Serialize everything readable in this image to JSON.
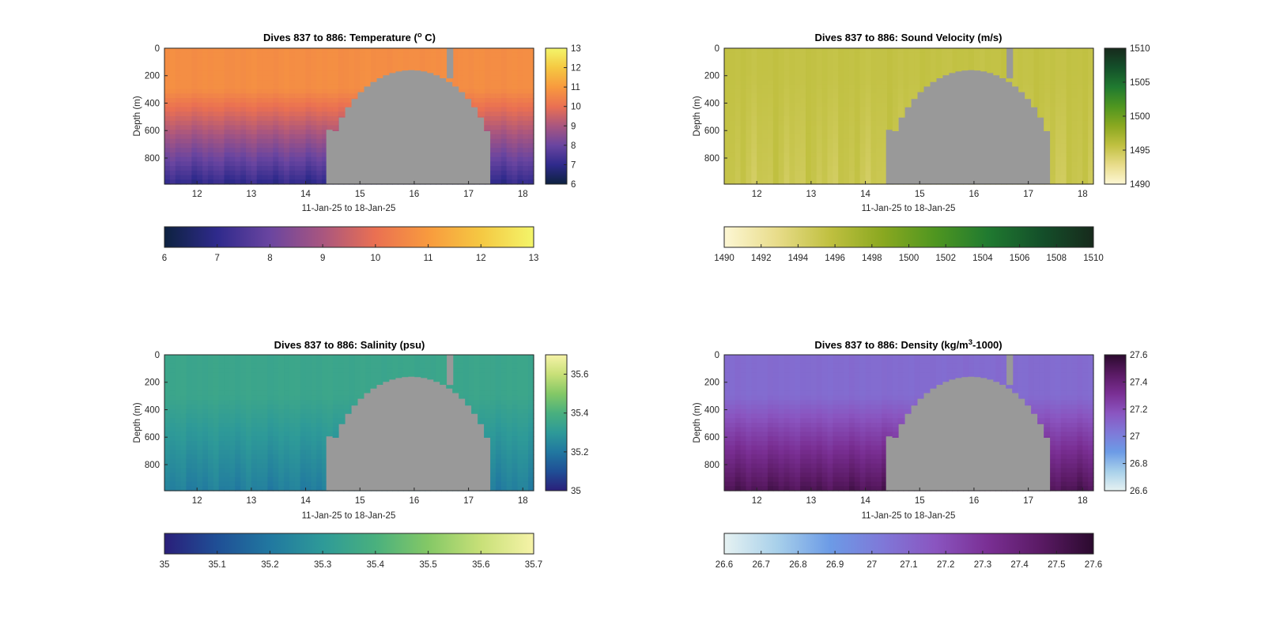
{
  "figure": {
    "background": "#ffffff",
    "fill_color": "#999999"
  },
  "chart_data": [
    {
      "type": "heatmap",
      "title_main": "Dives 837 to 886: Temperature (",
      "title_sup": "o",
      "title_end": " C)",
      "xlabel": "11-Jan-25 to 18-Jan-25",
      "ylabel": "Depth (m)",
      "xlim": [
        11.4,
        18.2
      ],
      "ylim": [
        0,
        990
      ],
      "y_reversed": true,
      "xticks": [
        12,
        13,
        14,
        15,
        16,
        17,
        18
      ],
      "yticks": [
        0,
        200,
        400,
        600,
        800
      ],
      "colormap": [
        "#0d2240",
        "#2f2a8c",
        "#6a45a0",
        "#a9567f",
        "#ea7052",
        "#f89a3e",
        "#f5c842",
        "#f3f56a"
      ],
      "vertical_colorbar": {
        "ticks": [
          6,
          7,
          8,
          9,
          10,
          11,
          12,
          13
        ],
        "range": [
          6,
          13
        ]
      },
      "horizontal_colorbar": {
        "ticks": [
          6,
          7,
          8,
          9,
          10,
          11,
          12,
          13
        ],
        "range": [
          6,
          13
        ]
      },
      "surface_value": 10.7,
      "deep_value": 7.0,
      "gradient_start_depth": 300,
      "no_data_region": {
        "start": 14.38,
        "end": 17.4,
        "top_depth": 160,
        "bottom_depth": 990,
        "spike_x": [
          16.6,
          16.72
        ],
        "spike_top": 0
      }
    },
    {
      "type": "heatmap",
      "title_main": "Dives 837 to 886: Sound Velocity (m/s)",
      "title_sup": "",
      "title_end": "",
      "xlabel": "11-Jan-25 to 18-Jan-25",
      "ylabel": "Depth (m)",
      "xlim": [
        11.4,
        18.2
      ],
      "ylim": [
        0,
        990
      ],
      "y_reversed": true,
      "xticks": [
        12,
        13,
        14,
        15,
        16,
        17,
        18
      ],
      "yticks": [
        0,
        200,
        400,
        600,
        800
      ],
      "colormap": [
        "#fdf7d4",
        "#e8dc8a",
        "#c0c040",
        "#8aa820",
        "#4f9620",
        "#207a30",
        "#14502a",
        "#172a1c"
      ],
      "vertical_colorbar": {
        "ticks": [
          1490,
          1495,
          1500,
          1505,
          1510
        ],
        "range": [
          1490,
          1510
        ]
      },
      "horizontal_colorbar": {
        "ticks": [
          1490,
          1492,
          1494,
          1496,
          1498,
          1500,
          1502,
          1504,
          1506,
          1508,
          1510
        ],
        "range": [
          1490,
          1510
        ]
      },
      "surface_value": 1495.5,
      "deep_value": 1495.0,
      "gradient_start_depth": 200,
      "no_data_region": {
        "start": 14.38,
        "end": 17.4,
        "top_depth": 160,
        "bottom_depth": 990,
        "spike_x": [
          16.6,
          16.72
        ],
        "spike_top": 0
      }
    },
    {
      "type": "heatmap",
      "title_main": "Dives 837 to 886: Salinity (psu)",
      "title_sup": "",
      "title_end": "",
      "xlabel": "11-Jan-25 to 18-Jan-25",
      "ylabel": "Depth (m)",
      "xlim": [
        11.4,
        18.2
      ],
      "ylim": [
        0,
        990
      ],
      "y_reversed": true,
      "xticks": [
        12,
        13,
        14,
        15,
        16,
        17,
        18
      ],
      "yticks": [
        0,
        200,
        400,
        600,
        800
      ],
      "colormap": [
        "#2a1f7a",
        "#1f4f96",
        "#2178a0",
        "#2e9a98",
        "#49b07e",
        "#84c866",
        "#c8e078",
        "#f6f3a8"
      ],
      "vertical_colorbar": {
        "ticks": [
          35,
          35.2,
          35.4,
          35.6
        ],
        "range": [
          35,
          35.7
        ]
      },
      "horizontal_colorbar": {
        "ticks": [
          35,
          35.1,
          35.2,
          35.3,
          35.4,
          35.5,
          35.6,
          35.7
        ],
        "range": [
          35,
          35.7
        ]
      },
      "surface_value": 35.35,
      "deep_value": 35.22,
      "gradient_start_depth": 300,
      "no_data_region": {
        "start": 14.38,
        "end": 17.4,
        "top_depth": 160,
        "bottom_depth": 990,
        "spike_x": [
          16.6,
          16.72
        ],
        "spike_top": 0
      }
    },
    {
      "type": "heatmap",
      "title_main": "Dives 837 to 886: Density (kg/m",
      "title_sup": "3",
      "title_end": "-1000)",
      "xlabel": "11-Jan-25 to 18-Jan-25",
      "ylabel": "Depth (m)",
      "xlim": [
        11.4,
        18.2
      ],
      "ylim": [
        0,
        990
      ],
      "y_reversed": true,
      "xticks": [
        12,
        13,
        14,
        15,
        16,
        17,
        18
      ],
      "yticks": [
        0,
        200,
        400,
        600,
        800
      ],
      "colormap": [
        "#e6f2f2",
        "#a8d0ea",
        "#6c9be6",
        "#7f78d8",
        "#8a55c0",
        "#7a2f94",
        "#5a1a64",
        "#2b0a2e"
      ],
      "vertical_colorbar": {
        "ticks": [
          26.6,
          26.8,
          27,
          27.2,
          27.4,
          27.6
        ],
        "range": [
          26.6,
          27.6
        ]
      },
      "horizontal_colorbar": {
        "ticks": [
          26.6,
          26.7,
          26.8,
          26.9,
          27,
          27.1,
          27.2,
          27.3,
          27.4,
          27.5,
          27.6
        ],
        "range": [
          26.6,
          27.6
        ]
      },
      "surface_value": 27.08,
      "deep_value": 27.5,
      "gradient_start_depth": 300,
      "no_data_region": {
        "start": 14.38,
        "end": 17.4,
        "top_depth": 160,
        "bottom_depth": 990,
        "spike_x": [
          16.6,
          16.72
        ],
        "spike_top": 0
      }
    }
  ]
}
